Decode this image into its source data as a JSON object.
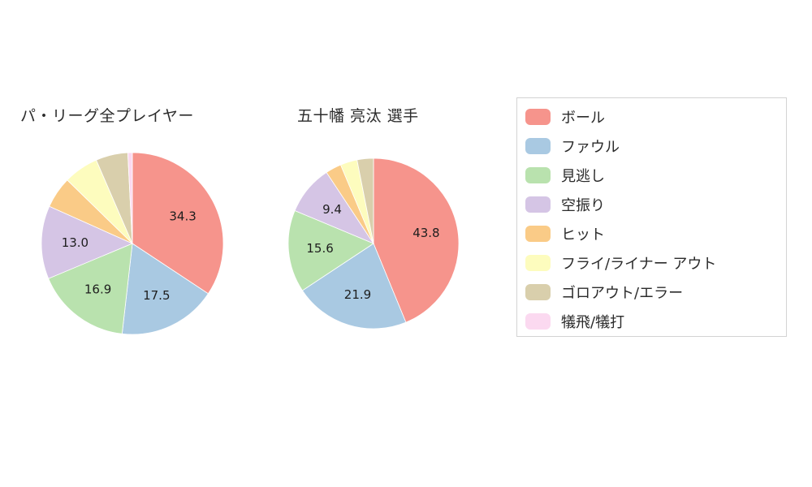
{
  "charts": {
    "left_title": "パ・リーグ全プレイヤー",
    "right_title": "五十幡 亮汰 選手"
  },
  "legend": {
    "items": [
      {
        "label": "ボール",
        "color": "#F6948C"
      },
      {
        "label": "ファウル",
        "color": "#A9C9E2"
      },
      {
        "label": "見逃し",
        "color": "#B9E2AE"
      },
      {
        "label": "空振り",
        "color": "#D5C5E5"
      },
      {
        "label": "ヒット",
        "color": "#FACB87"
      },
      {
        "label": "フライ/ライナー アウト",
        "color": "#FDFCBE"
      },
      {
        "label": "ゴロアウト/エラー",
        "color": "#D9CFAC"
      },
      {
        "label": "犠飛/犠打",
        "color": "#FBD9F0"
      }
    ]
  },
  "chart_data": [
    {
      "type": "pie",
      "title": "パ・リーグ全プレイヤー",
      "labels": [
        "ボール",
        "ファウル",
        "見逃し",
        "空振り",
        "ヒット",
        "フライ/ライナー アウト",
        "ゴロアウト/エラー",
        "犠飛/犠打"
      ],
      "values": [
        34.3,
        17.5,
        16.9,
        13.0,
        5.6,
        6.2,
        5.7,
        0.8
      ],
      "shown_value_labels": [
        34.3,
        17.5,
        16.9,
        13.0
      ],
      "start_angle": "top",
      "direction": "clockwise",
      "legend_position": "right"
    },
    {
      "type": "pie",
      "title": "五十幡 亮汰 選手",
      "labels": [
        "ボール",
        "ファウル",
        "見逃し",
        "空振り",
        "ヒット",
        "フライ/ライナー アウト",
        "ゴロアウト/エラー",
        "犠飛/犠打"
      ],
      "values": [
        43.8,
        21.9,
        15.6,
        9.4,
        3.0,
        3.2,
        3.1,
        0
      ],
      "shown_value_labels": [
        43.8,
        21.9,
        15.6,
        9.4
      ],
      "start_angle": "top",
      "direction": "clockwise",
      "legend_position": "right"
    }
  ]
}
